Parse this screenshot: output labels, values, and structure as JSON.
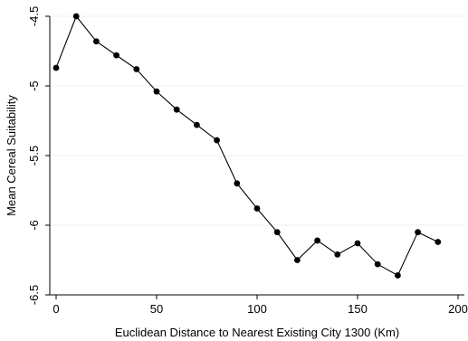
{
  "chart_data": {
    "type": "line",
    "title": "",
    "xlabel": "Euclidean Distance to Nearest Existing City 1300 (Km)",
    "ylabel": "Mean Cereal Suitability",
    "xlim": [
      0,
      200
    ],
    "ylim": [
      -6.5,
      -4.5
    ],
    "x_ticks": [
      0,
      50,
      100,
      150,
      200
    ],
    "x_tick_labels": [
      "0",
      "50",
      "100",
      "150",
      "200"
    ],
    "y_ticks": [
      -4.5,
      -5,
      -5.5,
      -6,
      -6.5
    ],
    "y_tick_labels": [
      "-4.5",
      "-5",
      "-5.5",
      "-6",
      "-6.5"
    ],
    "grid": "horizontal",
    "legend": "none",
    "series": [
      {
        "x": [
          0,
          10,
          20,
          30,
          40,
          50,
          60,
          70,
          80,
          90,
          100,
          110,
          120,
          130,
          140,
          150,
          160,
          170,
          180,
          190
        ],
        "y": [
          -4.87,
          -4.5,
          -4.68,
          -4.78,
          -4.88,
          -5.04,
          -5.17,
          -5.28,
          -5.39,
          -5.7,
          -5.88,
          -6.05,
          -6.25,
          -6.11,
          -6.21,
          -6.13,
          -6.28,
          -6.36,
          -6.05,
          -6.12
        ],
        "color": "#000000"
      }
    ]
  }
}
